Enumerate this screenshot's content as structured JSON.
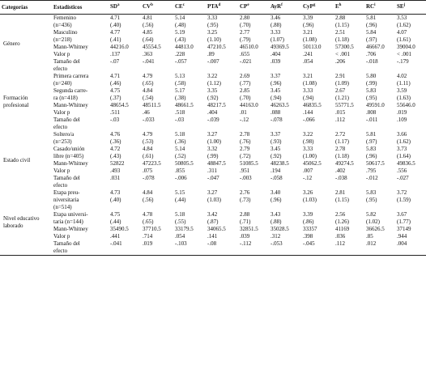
{
  "table": {
    "headers": [
      {
        "text": "Categorías",
        "sup": ""
      },
      {
        "text": "Estadísticos",
        "sup": ""
      },
      {
        "text": "SD",
        "sup": "a"
      },
      {
        "text": "CV",
        "sup": "b"
      },
      {
        "text": "CE",
        "sup": "c"
      },
      {
        "text": "PTA",
        "sup": "d"
      },
      {
        "text": "CP",
        "sup": "e"
      },
      {
        "text": "AyR",
        "sup": "f"
      },
      {
        "text": "CyP",
        "sup": "g"
      },
      {
        "text": "E",
        "sup": "h"
      },
      {
        "text": "RC",
        "sup": "i"
      },
      {
        "text": "SE",
        "sup": "j"
      }
    ],
    "groups": [
      {
        "category": "Género",
        "rows": [
          {
            "stat": [
              "Femenino",
              "(n=436)"
            ],
            "values": [
              [
                "4.71",
                "(.40)"
              ],
              [
                "4.81",
                "(.56)"
              ],
              [
                "5.14",
                "(.48)"
              ],
              [
                "3.33",
                "(.95)"
              ],
              [
                "2.80",
                "(.70)"
              ],
              [
                "3.46",
                "(.88)"
              ],
              [
                "3.39",
                "(.96)"
              ],
              [
                "2.88",
                "(1.15)"
              ],
              [
                "5.81",
                "(.96)"
              ],
              [
                "3.53",
                "(1.62)"
              ]
            ]
          },
          {
            "stat": [
              "Masculino",
              "(n=218)"
            ],
            "values": [
              [
                "4.77",
                "(.41)"
              ],
              [
                "4.85",
                "(.64)"
              ],
              [
                "5.19",
                "(.43)"
              ],
              [
                "3.25",
                "(1.10)"
              ],
              [
                "2.77",
                "(.79)"
              ],
              [
                "3.33",
                "(1.07)"
              ],
              [
                "3.21",
                "(1.08)"
              ],
              [
                "2.51",
                "(1.18)"
              ],
              [
                "5.84",
                "(.97)"
              ],
              [
                "4.07",
                "(1.61)"
              ]
            ]
          },
          {
            "stat": [
              "Mann-Whitney"
            ],
            "values": [
              [
                "44216.0"
              ],
              [
                "45554.5"
              ],
              [
                "44813.0"
              ],
              [
                "47210.5"
              ],
              [
                "46510.0"
              ],
              [
                "49369.5"
              ],
              [
                "50113.0"
              ],
              [
                "57300.5"
              ],
              [
                "46667.0"
              ],
              [
                "39004.0"
              ]
            ]
          },
          {
            "stat": [
              "Valor p"
            ],
            "values": [
              [
                ".137"
              ],
              [
                ".363"
              ],
              [
                ".228"
              ],
              [
                ".89"
              ],
              [
                ".655"
              ],
              [
                ".404"
              ],
              [
                ".241"
              ],
              [
                "< .001"
              ],
              [
                ".706"
              ],
              [
                "< .001"
              ]
            ]
          },
          {
            "stat": [
              "Tamaño del",
              "efecto"
            ],
            "values": [
              [
                "-.07"
              ],
              [
                "-.041"
              ],
              [
                "-.057"
              ],
              [
                "-.007"
              ],
              [
                "-.021"
              ],
              [
                ".039"
              ],
              [
                ".054"
              ],
              [
                ".206"
              ],
              [
                "-.018"
              ],
              [
                "-.179"
              ]
            ]
          }
        ]
      },
      {
        "category": "Formación profesional",
        "rows": [
          {
            "stat": [
              "Primera carrera",
              "(n=240)"
            ],
            "values": [
              [
                "4.71",
                "(.46)"
              ],
              [
                "4.79",
                "(.65)"
              ],
              [
                "5.13",
                "(.58)"
              ],
              [
                "3.22",
                "(1.12)"
              ],
              [
                "2.69",
                "(.77)"
              ],
              [
                "3.37",
                "(.96)"
              ],
              [
                "3.21",
                "(1.08)"
              ],
              [
                "2.91",
                "(1.09)"
              ],
              [
                "5.80",
                "(.99)"
              ],
              [
                "4.02",
                "(1.11)"
              ]
            ]
          },
          {
            "stat": [
              "Segunda carre-",
              "ra (n=418)"
            ],
            "values": [
              [
                "4.75",
                "(.37)"
              ],
              [
                "4.84",
                "(.54)"
              ],
              [
                "5.17",
                "(.38)"
              ],
              [
                "3.35",
                "(.92)"
              ],
              [
                "2.85",
                "(.70)"
              ],
              [
                "3.45",
                "(.94)"
              ],
              [
                "3.33",
                "(.94)"
              ],
              [
                "2.67",
                "(1.21)"
              ],
              [
                "5.83",
                "(.95)"
              ],
              [
                "3.59",
                "(1.63)"
              ]
            ]
          },
          {
            "stat": [
              "Mann-Whitney"
            ],
            "values": [
              [
                "48654.5"
              ],
              [
                "48511.5"
              ],
              [
                "48661.5"
              ],
              [
                "48217.5"
              ],
              [
                "44163.0"
              ],
              [
                "46263.5"
              ],
              [
                "46835.5"
              ],
              [
                "55771.5"
              ],
              [
                "49591.0"
              ],
              [
                "55646.0"
              ]
            ]
          },
          {
            "stat": [
              "Valor p"
            ],
            "values": [
              [
                ".511"
              ],
              [
                ".46"
              ],
              [
                ".518"
              ],
              [
                ".404"
              ],
              [
                ".01"
              ],
              [
                ".088"
              ],
              [
                ".144"
              ],
              [
                ".015"
              ],
              [
                ".808"
              ],
              [
                ".019"
              ]
            ]
          },
          {
            "stat": [
              "Tamaño del",
              "efecto"
            ],
            "values": [
              [
                "-.03"
              ],
              [
                "-.033"
              ],
              [
                "-.03"
              ],
              [
                "-.039"
              ],
              [
                "-.12"
              ],
              [
                "-.078"
              ],
              [
                "-.066"
              ],
              [
                ".112"
              ],
              [
                "-.011"
              ],
              [
                ".109"
              ]
            ]
          }
        ]
      },
      {
        "category": "Estado civil",
        "rows": [
          {
            "stat": [
              "Soltero/a",
              "(n=253)"
            ],
            "values": [
              [
                "4.76",
                "(.36)"
              ],
              [
                "4.79",
                "(.53)"
              ],
              [
                "5.18",
                "(.36)"
              ],
              [
                "3.27",
                "(1.00)"
              ],
              [
                "2.78",
                "(.76)"
              ],
              [
                "3.37",
                "(.93)"
              ],
              [
                "3.22",
                "(.98)"
              ],
              [
                "2.72",
                "(1.17)"
              ],
              [
                "5.81",
                "(.97)"
              ],
              [
                "3.66",
                "(1.62)"
              ]
            ]
          },
          {
            "stat": [
              "Casado/unión",
              "libre (n=405)"
            ],
            "values": [
              [
                "4.72",
                "(.43)"
              ],
              [
                "4.84",
                "(.61)"
              ],
              [
                "5.14",
                "(.52)"
              ],
              [
                "3.32",
                "(.99)"
              ],
              [
                "2.79",
                "(.72)"
              ],
              [
                "3.45",
                "(.92)"
              ],
              [
                "3.33",
                "(1.00)"
              ],
              [
                "2.78",
                "(1.18)"
              ],
              [
                "5.83",
                "(.96)"
              ],
              [
                "3.73",
                "(1.64)"
              ]
            ]
          },
          {
            "stat": [
              "Mann-Whitney"
            ],
            "values": [
              [
                "52822"
              ],
              [
                "47223.5"
              ],
              [
                "50805.5"
              ],
              [
                "48847.5"
              ],
              [
                "51085.5"
              ],
              [
                "48238.5"
              ],
              [
                "45062.5"
              ],
              [
                "49274.5"
              ],
              [
                "50617.5"
              ],
              [
                "49836.5"
              ]
            ]
          },
          {
            "stat": [
              "Valor p"
            ],
            "values": [
              [
                ".493"
              ],
              [
                ".075"
              ],
              [
                ".855"
              ],
              [
                ".311"
              ],
              [
                ".951"
              ],
              [
                ".194"
              ],
              [
                ".007"
              ],
              [
                ".402"
              ],
              [
                ".795"
              ],
              [
                ".556"
              ]
            ]
          },
          {
            "stat": [
              "Tamaño del",
              "efecto"
            ],
            "values": [
              [
                ".031"
              ],
              [
                "-.078"
              ],
              [
                "-.006"
              ],
              [
                "-.047"
              ],
              [
                "-.003"
              ],
              [
                "-.058"
              ],
              [
                "-.12"
              ],
              [
                "-.038"
              ],
              [
                "-.012"
              ],
              [
                "-.027"
              ]
            ]
          }
        ]
      },
      {
        "category": "Nivel educativo laborado",
        "rows": [
          {
            "stat": [
              "Etapa preu-",
              "niversitaria",
              "(n=514)"
            ],
            "values": [
              [
                "4.73",
                "(.40)"
              ],
              [
                "4.84",
                "(.56)"
              ],
              [
                "5.15",
                "(.44)"
              ],
              [
                "3.27",
                "(1.03)"
              ],
              [
                "2.76",
                "(.73)"
              ],
              [
                "3.40",
                "(.96)"
              ],
              [
                "3.26",
                "(1.03)"
              ],
              [
                "2.81",
                "(1.15)"
              ],
              [
                "5.83",
                "(.95)"
              ],
              [
                "3.72",
                "(1.59)"
              ]
            ]
          },
          {
            "stat": [
              "Etapa universi-",
              "taria (n=144)"
            ],
            "values": [
              [
                "4.75",
                "(.44)"
              ],
              [
                "4.78",
                "(.65)"
              ],
              [
                "5.18",
                "(.55)"
              ],
              [
                "3.42",
                "(.87)"
              ],
              [
                "2.88",
                "(.71)"
              ],
              [
                "3.43",
                "(.88)"
              ],
              [
                "3.39",
                "(.86)"
              ],
              [
                "2.56",
                "(1.26)"
              ],
              [
                "5.82",
                "(1.02)"
              ],
              [
                "3.67",
                "(1.77)"
              ]
            ]
          },
          {
            "stat": [
              "Mann-Whitney"
            ],
            "values": [
              [
                "35490.5"
              ],
              [
                "37710.5"
              ],
              [
                "33179.5"
              ],
              [
                "34065.5"
              ],
              [
                "32851.5"
              ],
              [
                "35028.5"
              ],
              [
                "33357"
              ],
              [
                "41169"
              ],
              [
                "36626.5"
              ],
              [
                "37149"
              ]
            ]
          },
          {
            "stat": [
              "Valor p"
            ],
            "values": [
              [
                ".441"
              ],
              [
                ".714"
              ],
              [
                ".054"
              ],
              [
                ".141"
              ],
              [
                ".039"
              ],
              [
                ".312"
              ],
              [
                ".398"
              ],
              [
                ".036"
              ],
              [
                ".85"
              ],
              [
                ".944"
              ]
            ]
          },
          {
            "stat": [
              "Tamaño del",
              "efecto"
            ],
            "values": [
              [
                "-.041"
              ],
              [
                ".019"
              ],
              [
                "-.103"
              ],
              [
                "-.08"
              ],
              [
                "-.112"
              ],
              [
                "-.053"
              ],
              [
                "-.045"
              ],
              [
                ".112"
              ],
              [
                ".012"
              ],
              [
                ".004"
              ]
            ]
          }
        ]
      }
    ]
  }
}
